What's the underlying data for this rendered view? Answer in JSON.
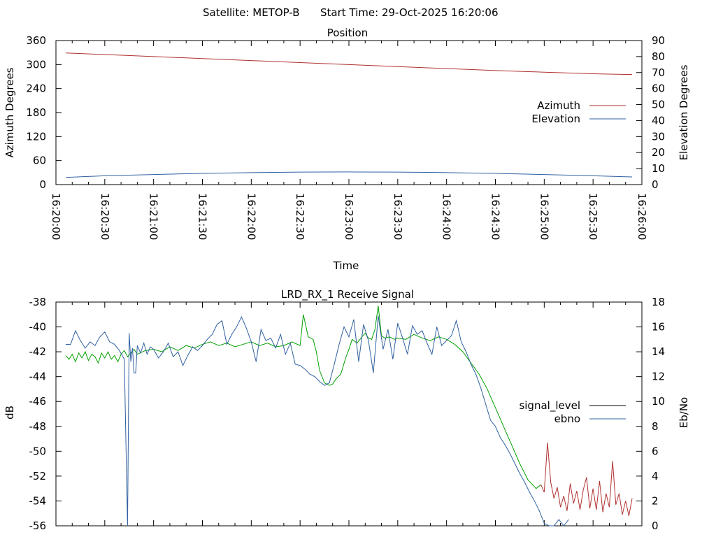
{
  "header": {
    "satellite": "Satellite: METOP-B",
    "start_time": "Start Time: 29-Oct-2025 16:20:06"
  },
  "chart_data": [
    {
      "type": "line",
      "title": "Position",
      "xlabel": "Time",
      "ylabel": "Azimuth Degrees",
      "y2label": "Elevation Degrees",
      "x_ticks": [
        "16:20:00",
        "16:20:30",
        "16:21:00",
        "16:21:30",
        "16:22:00",
        "16:22:30",
        "16:23:00",
        "16:23:30",
        "16:24:00",
        "16:24:30",
        "16:25:00",
        "16:25:30",
        "16:26:00"
      ],
      "xlim_seconds": [
        0,
        360
      ],
      "ylim": [
        0,
        360
      ],
      "y_ticks": [
        0,
        60,
        120,
        180,
        240,
        300,
        360
      ],
      "y2lim": [
        0,
        90
      ],
      "y2_ticks": [
        0,
        10,
        20,
        30,
        40,
        50,
        60,
        70,
        80,
        90
      ],
      "legend_position": "right",
      "series": [
        {
          "name": "Azimuth",
          "axis": "y",
          "color": "#b03030",
          "x_seconds": [
            6,
            30,
            60,
            90,
            120,
            150,
            180,
            210,
            240,
            270,
            300,
            330,
            354
          ],
          "values": [
            329,
            325,
            320,
            315,
            310,
            305,
            300,
            295,
            290,
            285,
            281,
            277,
            275
          ]
        },
        {
          "name": "Elevation",
          "axis": "y2",
          "color": "#3060a0",
          "x_seconds": [
            6,
            30,
            60,
            90,
            120,
            150,
            180,
            210,
            240,
            270,
            300,
            330,
            354
          ],
          "values": [
            4.5,
            5.5,
            6.3,
            7.0,
            7.5,
            7.8,
            7.9,
            7.8,
            7.5,
            7.0,
            6.3,
            5.5,
            4.8
          ]
        }
      ]
    },
    {
      "type": "line",
      "title": "LRD_RX_1 Receive Signal",
      "ylabel": "dB",
      "y2label": "Eb/No",
      "xlim_seconds": [
        0,
        360
      ],
      "ylim": [
        -56,
        -38
      ],
      "y_ticks": [
        -38,
        -40,
        -42,
        -44,
        -46,
        -48,
        -50,
        -52,
        -54,
        -56
      ],
      "y2lim": [
        0,
        18
      ],
      "y2_ticks": [
        0,
        2,
        4,
        6,
        8,
        10,
        12,
        14,
        16,
        18
      ],
      "legend_position": "right",
      "series": [
        {
          "name": "signal_level",
          "axis": "y",
          "color": "#00a000",
          "color_after_green": "#b03030",
          "x_seconds": [
            6,
            8,
            10,
            12,
            14,
            16,
            18,
            20,
            22,
            24,
            26,
            28,
            30,
            32,
            34,
            36,
            38,
            40,
            42,
            44,
            46,
            48,
            50,
            55,
            60,
            65,
            70,
            75,
            80,
            85,
            90,
            95,
            100,
            105,
            110,
            115,
            120,
            125,
            130,
            135,
            140,
            145,
            150,
            152,
            155,
            158,
            160,
            162,
            165,
            168,
            170,
            172,
            175,
            178,
            180,
            182,
            185,
            188,
            190,
            192,
            194,
            196,
            198,
            200,
            202,
            205,
            208,
            210,
            215,
            220,
            225,
            230,
            235,
            240,
            245,
            250,
            255,
            260,
            265,
            270,
            275,
            280,
            285,
            290,
            295,
            298,
            300,
            302,
            304,
            306,
            308,
            310,
            312,
            314,
            316,
            318,
            320,
            322,
            324,
            326,
            328,
            330,
            332,
            334,
            336,
            338,
            340,
            342,
            344,
            346,
            348,
            350,
            352,
            354
          ],
          "values": [
            -42.3,
            -42.6,
            -42.2,
            -42.8,
            -42.1,
            -42.5,
            -42.0,
            -42.7,
            -42.2,
            -42.4,
            -42.9,
            -42.1,
            -42.5,
            -42.0,
            -42.6,
            -42.3,
            -42.8,
            -42.2,
            -41.9,
            -42.4,
            -42.1,
            -41.8,
            -42.2,
            -41.9,
            -41.8,
            -42.0,
            -41.6,
            -41.9,
            -41.5,
            -41.7,
            -41.4,
            -41.2,
            -41.5,
            -41.3,
            -41.6,
            -41.4,
            -41.2,
            -41.5,
            -41.3,
            -41.6,
            -41.5,
            -41.2,
            -41.5,
            -39.0,
            -40.8,
            -41.0,
            -42.0,
            -43.5,
            -44.5,
            -44.7,
            -44.6,
            -44.2,
            -43.8,
            -42.5,
            -41.8,
            -41.0,
            -41.3,
            -40.8,
            -40.5,
            -40.9,
            -41.0,
            -40.2,
            -38.3,
            -40.7,
            -40.9,
            -40.8,
            -41.0,
            -40.9,
            -41.0,
            -40.6,
            -40.9,
            -41.1,
            -40.8,
            -41.0,
            -41.4,
            -42.0,
            -42.9,
            -43.8,
            -45.0,
            -46.5,
            -48.0,
            -49.5,
            -51.0,
            -52.3,
            -53.0,
            -52.7,
            -53.3,
            -49.3,
            -52.5,
            -53.8,
            -52.9,
            -54.5,
            -53.6,
            -54.8,
            -52.6,
            -54.2,
            -53.2,
            -54.7,
            -53.1,
            -52.1,
            -54.6,
            -53.0,
            -54.7,
            -52.4,
            -54.9,
            -53.4,
            -54.5,
            -50.8,
            -54.3,
            -53.4,
            -55.1,
            -54.0,
            -55.2,
            -53.8
          ]
        },
        {
          "name": "ebno",
          "axis": "y2",
          "color": "#3060a0",
          "x_seconds": [
            6,
            9,
            12,
            15,
            18,
            21,
            24,
            27,
            30,
            33,
            36,
            39,
            42,
            44,
            45,
            46,
            47,
            48,
            49,
            50,
            52,
            54,
            56,
            58,
            60,
            63,
            66,
            69,
            72,
            75,
            78,
            81,
            84,
            87,
            90,
            93,
            96,
            99,
            102,
            105,
            108,
            111,
            114,
            117,
            120,
            123,
            126,
            129,
            132,
            135,
            138,
            141,
            144,
            147,
            150,
            153,
            156,
            159,
            162,
            165,
            168,
            171,
            174,
            177,
            180,
            183,
            186,
            189,
            192,
            195,
            198,
            201,
            204,
            207,
            210,
            213,
            216,
            219,
            222,
            225,
            228,
            231,
            234,
            237,
            240,
            243,
            246,
            249,
            252,
            255,
            258,
            261,
            264,
            267,
            270,
            273,
            276,
            279,
            282,
            285,
            288,
            291,
            294,
            297,
            300,
            303,
            306,
            309,
            312,
            315
          ],
          "values": [
            14.6,
            14.6,
            15.7,
            14.9,
            14.3,
            14.8,
            14.5,
            15.2,
            15.6,
            14.8,
            14.6,
            14.1,
            13.4,
            0.0,
            15.5,
            13.2,
            14.3,
            12.3,
            12.3,
            14.5,
            13.9,
            14.7,
            13.8,
            14.4,
            14.2,
            13.5,
            14.0,
            14.7,
            13.6,
            14.0,
            12.9,
            13.7,
            14.4,
            14.1,
            14.5,
            15.0,
            15.4,
            16.2,
            16.5,
            14.6,
            15.4,
            16.0,
            16.8,
            15.9,
            14.8,
            13.2,
            15.8,
            14.9,
            15.1,
            14.3,
            15.4,
            13.8,
            14.7,
            13.0,
            12.9,
            12.6,
            12.2,
            12.0,
            11.6,
            11.3,
            11.5,
            13.0,
            14.6,
            16.0,
            15.2,
            16.6,
            13.2,
            16.2,
            14.9,
            12.3,
            16.9,
            14.2,
            15.8,
            13.4,
            16.3,
            15.1,
            13.8,
            16.1,
            15.4,
            15.7,
            14.7,
            13.8,
            16.0,
            14.5,
            14.9,
            15.3,
            16.5,
            14.8,
            14.0,
            13.0,
            12.2,
            11.1,
            9.8,
            8.5,
            8.0,
            7.1,
            6.5,
            5.8,
            5.0,
            4.2,
            3.5,
            2.7,
            2.0,
            1.2,
            0.2,
            0.0,
            0.0,
            0.5,
            0.0,
            0.5
          ]
        }
      ]
    }
  ]
}
